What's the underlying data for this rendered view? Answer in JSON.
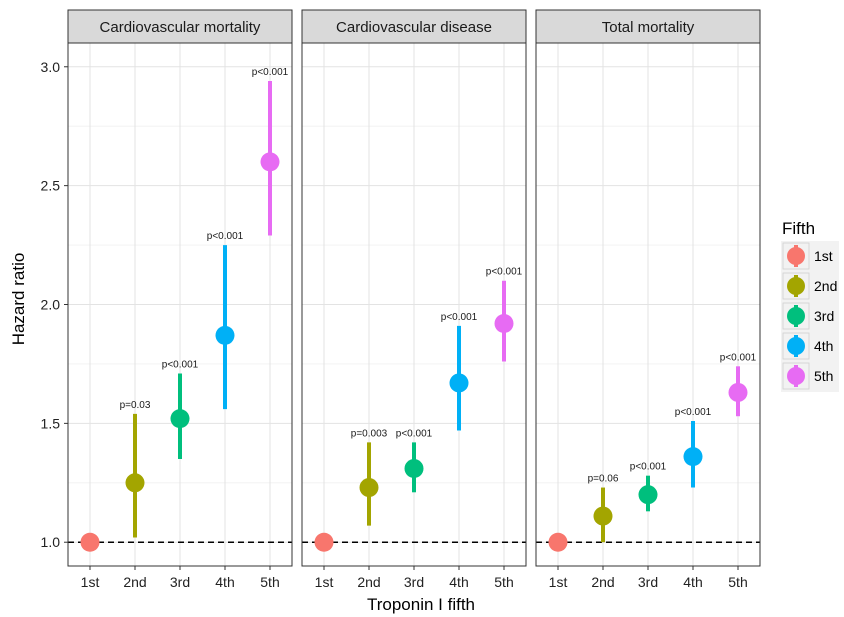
{
  "chart_data": {
    "type": "scatter",
    "xlabel": "Troponin I fifth",
    "ylabel": "Hazard ratio",
    "ylim": [
      0.9,
      3.1
    ],
    "yticks": [
      "1.0",
      "1.5",
      "2.0",
      "2.5",
      "3.0"
    ],
    "categories": [
      "1st",
      "2nd",
      "3rd",
      "4th",
      "5th"
    ],
    "reference_line": 1.0,
    "legend": {
      "title": "Fifth",
      "placement": "right",
      "entries": [
        "1st",
        "2nd",
        "3rd",
        "4th",
        "5th"
      ]
    },
    "colors": [
      "#F8766D",
      "#A3A500",
      "#00BF7D",
      "#00B0F6",
      "#E76BF3"
    ],
    "grid": true,
    "panels": [
      {
        "title": "Cardiovascular mortality",
        "points": [
          {
            "category": "1st",
            "hr": 1.0,
            "lower": 1.0,
            "upper": 1.0,
            "p": ""
          },
          {
            "category": "2nd",
            "hr": 1.25,
            "lower": 1.02,
            "upper": 1.54,
            "p": "p=0.03"
          },
          {
            "category": "3rd",
            "hr": 1.52,
            "lower": 1.35,
            "upper": 1.71,
            "p": "p<0.001"
          },
          {
            "category": "4th",
            "hr": 1.87,
            "lower": 1.56,
            "upper": 2.25,
            "p": "p<0.001"
          },
          {
            "category": "5th",
            "hr": 2.6,
            "lower": 2.29,
            "upper": 2.94,
            "p": "p<0.001"
          }
        ]
      },
      {
        "title": "Cardiovascular disease",
        "points": [
          {
            "category": "1st",
            "hr": 1.0,
            "lower": 1.0,
            "upper": 1.0,
            "p": ""
          },
          {
            "category": "2nd",
            "hr": 1.23,
            "lower": 1.07,
            "upper": 1.42,
            "p": "p=0.003"
          },
          {
            "category": "3rd",
            "hr": 1.31,
            "lower": 1.21,
            "upper": 1.42,
            "p": "p<0.001"
          },
          {
            "category": "4th",
            "hr": 1.67,
            "lower": 1.47,
            "upper": 1.91,
            "p": "p<0.001"
          },
          {
            "category": "5th",
            "hr": 1.92,
            "lower": 1.76,
            "upper": 2.1,
            "p": "p<0.001"
          }
        ]
      },
      {
        "title": "Total mortality",
        "points": [
          {
            "category": "1st",
            "hr": 1.0,
            "lower": 1.0,
            "upper": 1.0,
            "p": ""
          },
          {
            "category": "2nd",
            "hr": 1.11,
            "lower": 1.0,
            "upper": 1.23,
            "p": "p=0.06"
          },
          {
            "category": "3rd",
            "hr": 1.2,
            "lower": 1.13,
            "upper": 1.28,
            "p": "p<0.001"
          },
          {
            "category": "4th",
            "hr": 1.36,
            "lower": 1.23,
            "upper": 1.51,
            "p": "p<0.001"
          },
          {
            "category": "5th",
            "hr": 1.63,
            "lower": 1.53,
            "upper": 1.74,
            "p": "p<0.001"
          }
        ]
      }
    ]
  }
}
